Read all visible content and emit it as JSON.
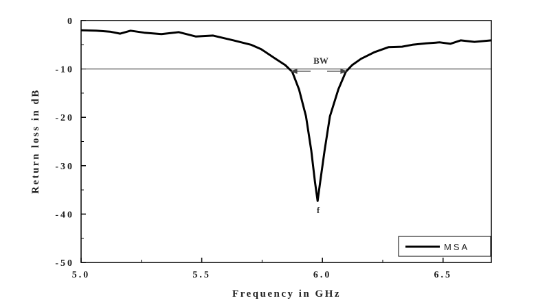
{
  "chart_data": {
    "type": "line",
    "title": "",
    "xlabel": "Frequency in GHz",
    "ylabel": "Return loss in dB",
    "xlim": [
      5.0,
      6.7
    ],
    "ylim": [
      -50,
      0
    ],
    "xticks": [
      5.0,
      5.5,
      6.0,
      6.5
    ],
    "xtick_labels": [
      "5.0",
      "5.5",
      "6.0",
      "6.5"
    ],
    "yticks": [
      0,
      -10,
      -20,
      -30,
      -40,
      -50
    ],
    "ytick_labels": [
      "0",
      "-10",
      "-20",
      "-30",
      "-40",
      "-50"
    ],
    "grid": false,
    "reference_line": {
      "y": -10
    },
    "legend": {
      "position": "bottom-right",
      "entries": [
        "MSA"
      ]
    },
    "annotations": {
      "bandwidth": "BW",
      "resonance": "f"
    },
    "series": [
      {
        "name": "MSA",
        "color": "#000000",
        "x": [
          5.0,
          5.063,
          5.12,
          5.162,
          5.205,
          5.262,
          5.333,
          5.405,
          5.476,
          5.547,
          5.632,
          5.704,
          5.746,
          5.803,
          5.846,
          5.875,
          5.903,
          5.932,
          5.954,
          5.969,
          5.98,
          5.991,
          6.009,
          6.031,
          6.066,
          6.097,
          6.123,
          6.16,
          6.217,
          6.274,
          6.33,
          6.373,
          6.43,
          6.487,
          6.53,
          6.573,
          6.63,
          6.7
        ],
        "y": [
          -2.0,
          -2.1,
          -2.3,
          -2.7,
          -2.1,
          -2.5,
          -2.8,
          -2.4,
          -3.3,
          -3.1,
          -4.1,
          -5.0,
          -5.9,
          -7.8,
          -9.2,
          -10.6,
          -14.2,
          -19.8,
          -26.9,
          -33.3,
          -37.3,
          -33.3,
          -26.9,
          -19.8,
          -14.2,
          -10.6,
          -9.2,
          -7.9,
          -6.5,
          -5.5,
          -5.4,
          -5.0,
          -4.7,
          -4.5,
          -4.8,
          -4.1,
          -4.4,
          -4.1
        ]
      }
    ]
  }
}
